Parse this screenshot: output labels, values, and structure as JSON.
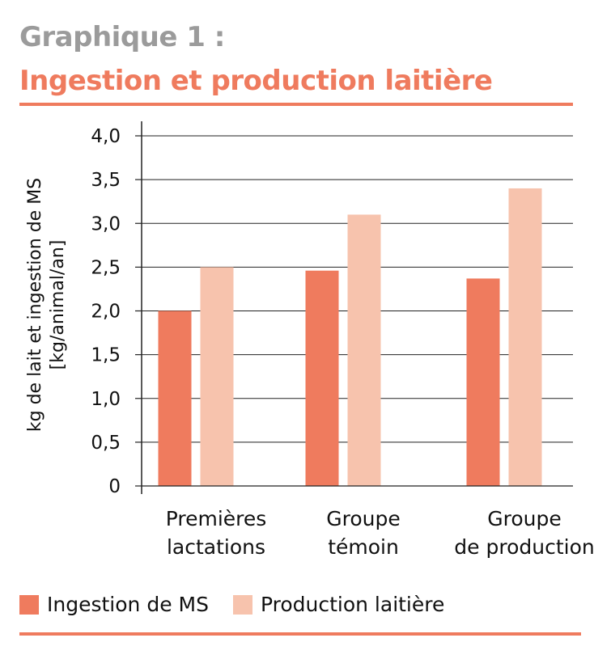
{
  "header": {
    "title_line1": "Graphique 1 :",
    "title_line2": "Ingestion et production laitière"
  },
  "colors": {
    "accent": "#ef7b5e",
    "title_gray": "#9b9b9b",
    "series_1": "#ef7b5e",
    "series_2": "#f7c3ad"
  },
  "chart_data": {
    "type": "bar",
    "title": "Ingestion et production laitière",
    "ylabel_line1": "kg de lait et ingestion de MS",
    "ylabel_line2": "[kg/animal/an]",
    "ylim": [
      0,
      4.0
    ],
    "y_ticks": [
      "0",
      "0,5",
      "1,0",
      "1,5",
      "2,0",
      "2,5",
      "3,0",
      "3,5",
      "4,0"
    ],
    "y_tick_values": [
      0,
      0.5,
      1.0,
      1.5,
      2.0,
      2.5,
      3.0,
      3.5,
      4.0
    ],
    "grid": true,
    "legend_position": "bottom-left",
    "categories": [
      [
        "Premières",
        "lactations"
      ],
      [
        "Groupe",
        "témoin"
      ],
      [
        "Groupe",
        "de production"
      ]
    ],
    "series": [
      {
        "name": "Ingestion de MS",
        "values": [
          2.0,
          2.46,
          2.37
        ]
      },
      {
        "name": "Production laitière",
        "values": [
          2.5,
          3.1,
          3.4
        ]
      }
    ]
  }
}
